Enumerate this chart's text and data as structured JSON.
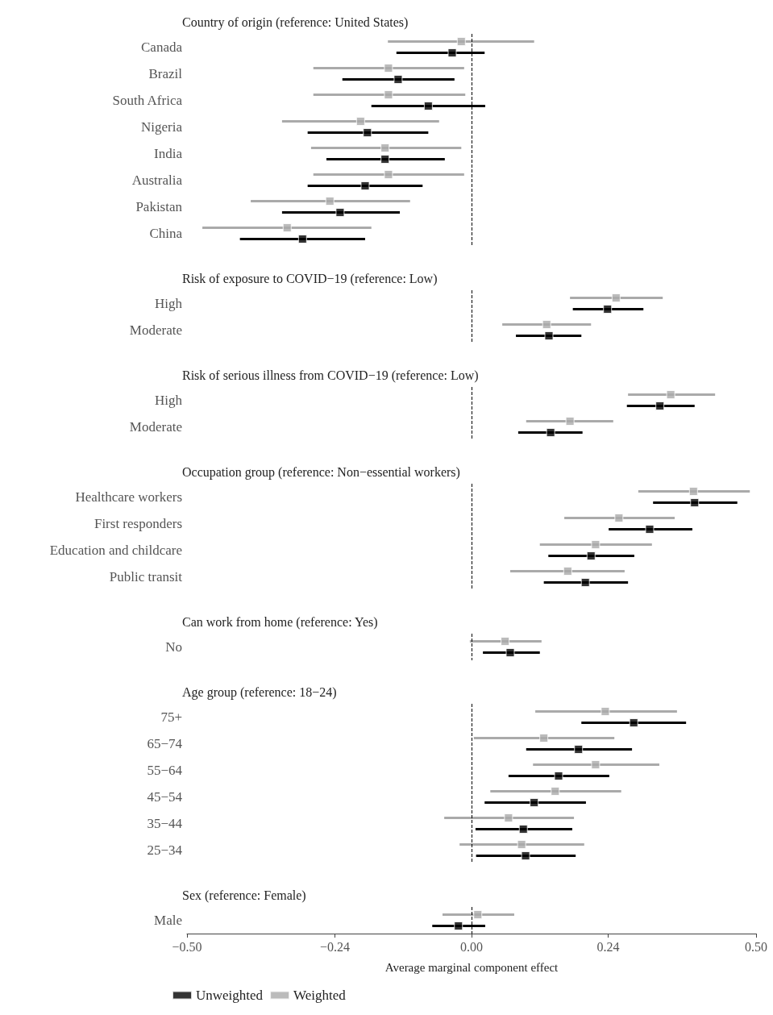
{
  "chart_data": [
    {
      "type": "scatter",
      "orientation": "horizontal",
      "title": "Country of origin (reference: United States)",
      "categories": [
        "Canada",
        "Brazil",
        "South Africa",
        "Nigeria",
        "India",
        "Australia",
        "Pakistan",
        "China"
      ],
      "series": [
        {
          "color": "#000000",
          "values": [
            -0.034,
            -0.129,
            -0.076,
            -0.183,
            -0.152,
            -0.187,
            -0.231,
            -0.297
          ],
          "errors": [
            [
              -0.132,
              0.023
            ],
            [
              -0.227,
              -0.03
            ],
            [
              -0.176,
              0.024
            ],
            [
              -0.288,
              -0.076
            ],
            [
              -0.255,
              -0.047
            ],
            [
              -0.288,
              -0.086
            ],
            [
              -0.333,
              -0.126
            ],
            [
              -0.407,
              -0.187
            ]
          ]
        },
        {
          "color": "#aaaaaa",
          "values": [
            -0.018,
            -0.146,
            -0.146,
            -0.195,
            -0.152,
            -0.146,
            -0.249,
            -0.324
          ],
          "errors": [
            [
              -0.147,
              0.11
            ],
            [
              -0.278,
              -0.013
            ],
            [
              -0.278,
              -0.011
            ],
            [
              -0.333,
              -0.057
            ],
            [
              -0.282,
              -0.018
            ],
            [
              -0.278,
              -0.013
            ],
            [
              -0.388,
              -0.108
            ],
            [
              -0.473,
              -0.176
            ]
          ]
        }
      ],
      "xlim": [
        -0.5,
        0.5
      ],
      "tick_labels": "y",
      "ref_lines": [
        {
          "axis": "x",
          "value": 0,
          "color": "#000000",
          "line_style": "dashed"
        }
      ],
      "marker": "square",
      "grid": false
    },
    {
      "type": "scatter",
      "orientation": "horizontal",
      "title": "Risk of exposure to COVID−19 (reference: Low)",
      "categories": [
        "High",
        "Moderate"
      ],
      "series": [
        {
          "color": "#000000",
          "values": [
            0.239,
            0.136
          ],
          "errors": [
            [
              0.178,
              0.302
            ],
            [
              0.078,
              0.193
            ]
          ]
        },
        {
          "color": "#aaaaaa",
          "values": [
            0.254,
            0.132
          ],
          "errors": [
            [
              0.173,
              0.336
            ],
            [
              0.054,
              0.21
            ]
          ]
        }
      ],
      "xlim": [
        -0.5,
        0.5
      ],
      "tick_labels": "y",
      "ref_lines": [
        {
          "axis": "x",
          "value": 0,
          "color": "#000000",
          "line_style": "dashed"
        }
      ],
      "marker": "square",
      "grid": false
    },
    {
      "type": "scatter",
      "orientation": "horizontal",
      "title": "Risk of serious illness from COVID−19 (reference: Low)",
      "categories": [
        "High",
        "Moderate"
      ],
      "series": [
        {
          "color": "#000000",
          "values": [
            0.331,
            0.139
          ],
          "errors": [
            [
              0.273,
              0.392
            ],
            [
              0.082,
              0.195
            ]
          ]
        },
        {
          "color": "#aaaaaa",
          "values": [
            0.35,
            0.173
          ],
          "errors": [
            [
              0.275,
              0.428
            ],
            [
              0.096,
              0.249
            ]
          ]
        }
      ],
      "xlim": [
        -0.5,
        0.5
      ],
      "tick_labels": "y",
      "ref_lines": [
        {
          "axis": "x",
          "value": 0,
          "color": "#000000",
          "line_style": "dashed"
        }
      ],
      "marker": "square",
      "grid": false
    },
    {
      "type": "scatter",
      "orientation": "horizontal",
      "title": "Occupation group (reference: Non−essential workers)",
      "categories": [
        "Healthcare workers",
        "First responders",
        "Education and childcare",
        "Public transit"
      ],
      "series": [
        {
          "color": "#000000",
          "values": [
            0.392,
            0.313,
            0.21,
            0.2
          ],
          "errors": [
            [
              0.319,
              0.467
            ],
            [
              0.241,
              0.388
            ],
            [
              0.135,
              0.286
            ],
            [
              0.127,
              0.275
            ]
          ]
        },
        {
          "color": "#aaaaaa",
          "values": [
            0.39,
            0.259,
            0.218,
            0.169
          ],
          "errors": [
            [
              0.293,
              0.489
            ],
            [
              0.163,
              0.357
            ],
            [
              0.12,
              0.317
            ],
            [
              0.068,
              0.269
            ]
          ]
        }
      ],
      "xlim": [
        -0.5,
        0.5
      ],
      "tick_labels": "y",
      "ref_lines": [
        {
          "axis": "x",
          "value": 0,
          "color": "#000000",
          "line_style": "dashed"
        }
      ],
      "marker": "square",
      "grid": false
    },
    {
      "type": "scatter",
      "orientation": "horizontal",
      "title": "Can work from home (reference: Yes)",
      "categories": [
        "No"
      ],
      "series": [
        {
          "color": "#000000",
          "values": [
            0.068
          ],
          "errors": [
            [
              0.02,
              0.12
            ]
          ]
        },
        {
          "color": "#aaaaaa",
          "values": [
            0.059
          ],
          "errors": [
            [
              -0.003,
              0.123
            ]
          ]
        }
      ],
      "xlim": [
        -0.5,
        0.5
      ],
      "tick_labels": "y",
      "ref_lines": [
        {
          "axis": "x",
          "value": 0,
          "color": "#000000",
          "line_style": "dashed"
        }
      ],
      "marker": "square",
      "grid": false
    },
    {
      "type": "scatter",
      "orientation": "horizontal",
      "title": "Age group (reference: 18−24)",
      "categories": [
        "75+",
        "65−74",
        "55−64",
        "45−54",
        "35−44",
        "25−34"
      ],
      "series": [
        {
          "color": "#000000",
          "values": [
            0.285,
            0.188,
            0.153,
            0.11,
            0.091,
            0.095
          ],
          "errors": [
            [
              0.193,
              0.377
            ],
            [
              0.096,
              0.282
            ],
            [
              0.065,
              0.242
            ],
            [
              0.023,
              0.201
            ],
            [
              0.007,
              0.177
            ],
            [
              0.008,
              0.183
            ]
          ]
        },
        {
          "color": "#aaaaaa",
          "values": [
            0.235,
            0.127,
            0.218,
            0.147,
            0.065,
            0.088
          ],
          "errors": [
            [
              0.112,
              0.361
            ],
            [
              0.004,
              0.251
            ],
            [
              0.108,
              0.33
            ],
            [
              0.033,
              0.263
            ],
            [
              -0.048,
              0.18
            ],
            [
              -0.021,
              0.198
            ]
          ]
        }
      ],
      "xlim": [
        -0.5,
        0.5
      ],
      "tick_labels": "y",
      "ref_lines": [
        {
          "axis": "x",
          "value": 0,
          "color": "#000000",
          "line_style": "dashed"
        }
      ],
      "marker": "square",
      "grid": false
    },
    {
      "type": "scatter",
      "orientation": "horizontal",
      "title": "Sex (reference: Female)",
      "categories": [
        "Male"
      ],
      "xlabel": "Average marginal component effect",
      "series": [
        {
          "name": "Unweighted",
          "color": "#000000",
          "values": [
            -0.023
          ],
          "errors": [
            [
              -0.069,
              0.024
            ]
          ]
        },
        {
          "name": "Weighted",
          "color": "#aaaaaa",
          "values": [
            0.011
          ],
          "errors": [
            [
              -0.051,
              0.075
            ]
          ]
        }
      ],
      "xlim": [
        -0.5,
        0.5
      ],
      "xticks": [
        {
          "value": -0.5,
          "label": "−0.50"
        },
        {
          "value": -0.24,
          "label": "−0.24"
        },
        {
          "value": 0,
          "label": "0.00"
        },
        0.24,
        {
          "value": 0.5,
          "label": "0.50"
        }
      ],
      "ref_lines": [
        {
          "axis": "x",
          "value": 0,
          "color": "#000000",
          "line_style": "dashed"
        }
      ],
      "marker": "square",
      "grid": false,
      "legend": "bottom left"
    }
  ]
}
